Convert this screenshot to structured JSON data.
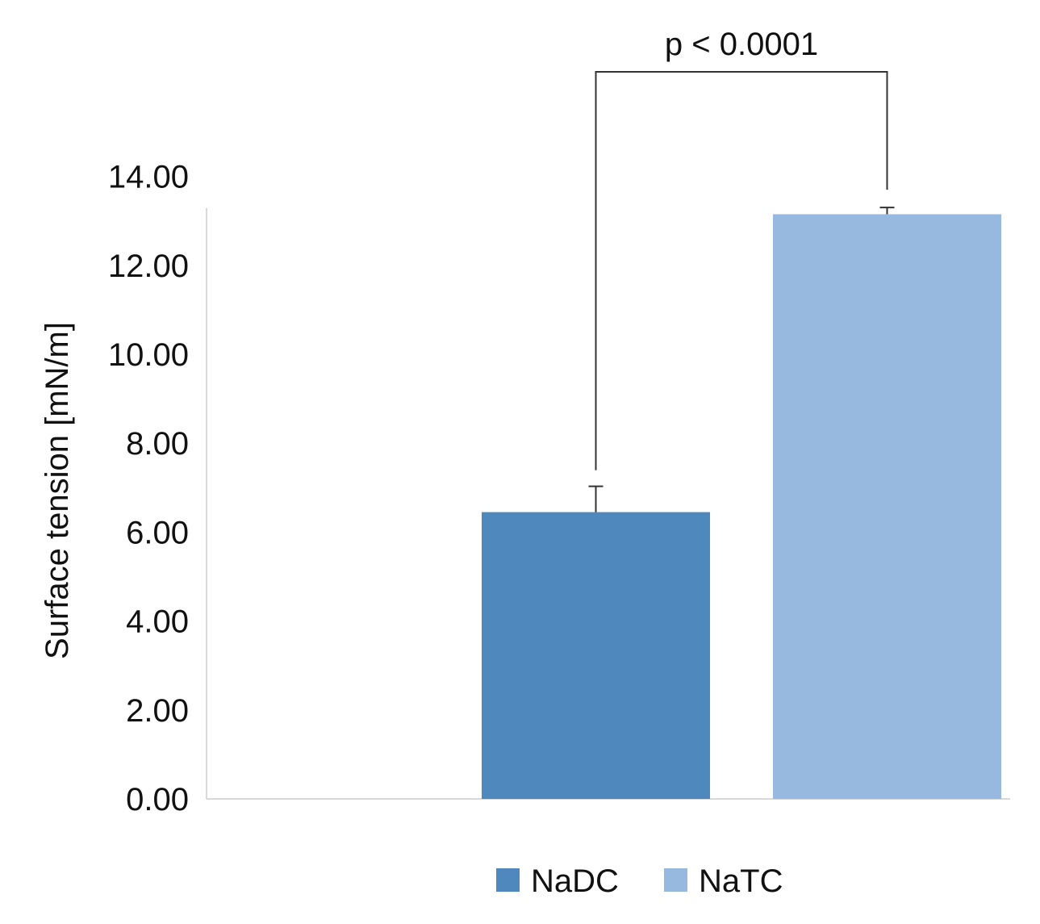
{
  "chart_data": {
    "type": "bar",
    "categories": [
      ""
    ],
    "series": [
      {
        "name": "NaDC",
        "values": [
          6.45
        ],
        "error": [
          0.58
        ],
        "color": "#4f88bd"
      },
      {
        "name": "NaTC",
        "values": [
          13.15
        ],
        "error": [
          0.15
        ],
        "color": "#98b9df"
      }
    ],
    "ylabel": "Surface tension [mN/m]",
    "ylim": [
      0,
      14
    ],
    "yticks": [
      "0.00",
      "2.00",
      "4.00",
      "6.00",
      "8.00",
      "10.00",
      "12.00",
      "14.00"
    ],
    "grid": false,
    "legend_position": "bottom",
    "annotations": [
      {
        "text": "p < 0.0001",
        "between": [
          "NaDC",
          "NaTC"
        ]
      }
    ]
  }
}
